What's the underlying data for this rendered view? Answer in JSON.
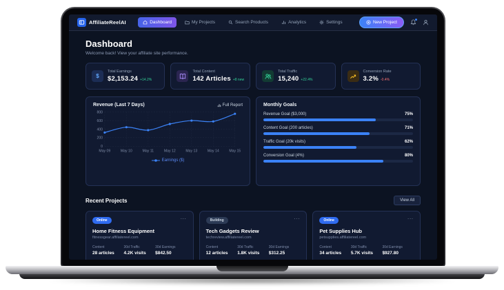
{
  "navbar": {
    "brand": "AffiliateReelAI",
    "items": [
      {
        "label": "Dashboard",
        "icon": "home-icon",
        "active": true
      },
      {
        "label": "My Projects",
        "icon": "folder-icon",
        "active": false
      },
      {
        "label": "Search Products",
        "icon": "search-icon",
        "active": false
      },
      {
        "label": "Analytics",
        "icon": "chart-icon",
        "active": false
      },
      {
        "label": "Settings",
        "icon": "gear-icon",
        "active": false
      }
    ],
    "new_project_label": "New Project",
    "notification_dot_color": "#3b82f6"
  },
  "header": {
    "title": "Dashboard",
    "subtitle": "Welcome back! View your affiliate site performance."
  },
  "stats": [
    {
      "label": "Total Earnings",
      "value": "$2,153.24",
      "delta": "+14.2%",
      "delta_color": "#34d399",
      "icon": "dollar-icon",
      "icon_color": "#60a5fa",
      "icon_bg": "#1c2d55"
    },
    {
      "label": "Total Content",
      "value": "142 Articles",
      "delta": "+8 new",
      "delta_color": "#34d399",
      "icon": "book-icon",
      "icon_color": "#a78bfa",
      "icon_bg": "#2b2550"
    },
    {
      "label": "Total Traffic",
      "value": "15,240",
      "delta": "+22.4%",
      "delta_color": "#34d399",
      "icon": "users-icon",
      "icon_color": "#34d399",
      "icon_bg": "#123b33"
    },
    {
      "label": "Conversion Rate",
      "value": "3.2%",
      "delta": "-0.4%",
      "delta_color": "#f87171",
      "icon": "trending-up-icon",
      "icon_color": "#fbbf24",
      "icon_bg": "#3a2c14"
    }
  ],
  "chart_data": {
    "type": "line",
    "title": "Revenue (Last 7 Days)",
    "full_report_label": "Full Report",
    "x": [
      "May 09",
      "May 10",
      "May 11",
      "May 12",
      "May 13",
      "May 14",
      "May 15"
    ],
    "series": [
      {
        "name": "Earnings ($)",
        "color": "#3b82f6",
        "values": [
          320,
          445,
          375,
          520,
          600,
          580,
          760
        ]
      }
    ],
    "ylim": [
      0,
      800
    ],
    "yticks": [
      0,
      200,
      400,
      600,
      800
    ],
    "grid": true,
    "legend_position": "bottom"
  },
  "goals": {
    "title": "Monthly Goals",
    "items": [
      {
        "label": "Revenue Goal ($3,000)",
        "percent": 75,
        "percent_label": "75%"
      },
      {
        "label": "Content Goal (200 articles)",
        "percent": 71,
        "percent_label": "71%"
      },
      {
        "label": "Traffic Goal (20k visits)",
        "percent": 62,
        "percent_label": "62%"
      },
      {
        "label": "Conversion Goal (4%)",
        "percent": 80,
        "percent_label": "80%"
      }
    ],
    "bar_color": "#3b82f6"
  },
  "projects": {
    "title": "Recent Projects",
    "view_all_label": "View All",
    "cards": [
      {
        "status": "Online",
        "name": "Home Fitness Equipment",
        "domain": "fitnessgear.affiliatereel.com",
        "menu": "...",
        "stats": [
          {
            "label": "Content",
            "value": "28 articles"
          },
          {
            "label": "30d Traffic",
            "value": "4.2K visits"
          },
          {
            "label": "30d Earnings",
            "value": "$842.50"
          }
        ]
      },
      {
        "status": "Building",
        "name": "Tech Gadgets Review",
        "domain": "techreview.affiliatereel.com",
        "menu": "...",
        "stats": [
          {
            "label": "Content",
            "value": "12 articles"
          },
          {
            "label": "30d Traffic",
            "value": "1.8K visits"
          },
          {
            "label": "30d Earnings",
            "value": "$312.25"
          }
        ]
      },
      {
        "status": "Online",
        "name": "Pet Supplies Hub",
        "domain": "petsupplies.affiliatereel.com",
        "menu": "...",
        "stats": [
          {
            "label": "Content",
            "value": "34 articles"
          },
          {
            "label": "30d Traffic",
            "value": "5.7K visits"
          },
          {
            "label": "30d Earnings",
            "value": "$927.80"
          }
        ]
      }
    ]
  }
}
